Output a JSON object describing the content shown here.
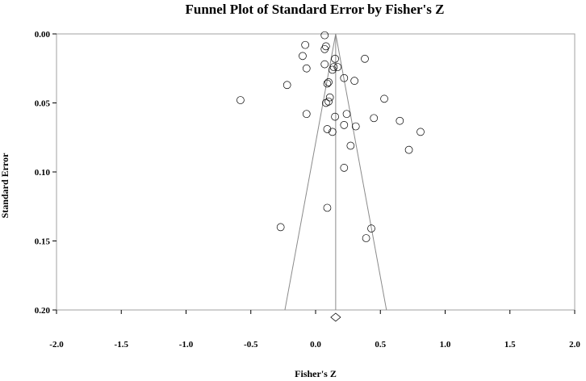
{
  "chart_data": {
    "type": "scatter",
    "title": "Funnel Plot of Standard Error by Fisher's Z",
    "xlabel": "Fisher's Z",
    "ylabel": "Standard Error",
    "xlim": [
      -2.0,
      2.0
    ],
    "ylim": [
      0.0,
      0.2
    ],
    "y_inverted": true,
    "x_ticks": [
      "-2.0",
      "-1.5",
      "-1.0",
      "-0.5",
      "0.0",
      "0.5",
      "1.0",
      "1.5",
      "2.0"
    ],
    "y_ticks": [
      "0.00",
      "0.05",
      "0.10",
      "0.15",
      "0.20"
    ],
    "pooled_estimate": 0.155,
    "funnel_base_se": 0.2,
    "points": [
      {
        "x": 0.07,
        "y": 0.001
      },
      {
        "x": -0.08,
        "y": 0.008
      },
      {
        "x": 0.08,
        "y": 0.009
      },
      {
        "x": 0.07,
        "y": 0.011
      },
      {
        "x": -0.1,
        "y": 0.016
      },
      {
        "x": 0.15,
        "y": 0.018
      },
      {
        "x": 0.38,
        "y": 0.018
      },
      {
        "x": 0.07,
        "y": 0.022
      },
      {
        "x": -0.07,
        "y": 0.025
      },
      {
        "x": 0.14,
        "y": 0.024
      },
      {
        "x": 0.17,
        "y": 0.024
      },
      {
        "x": 0.13,
        "y": 0.026
      },
      {
        "x": 0.22,
        "y": 0.032
      },
      {
        "x": 0.3,
        "y": 0.034
      },
      {
        "x": 0.1,
        "y": 0.035
      },
      {
        "x": 0.09,
        "y": 0.036
      },
      {
        "x": -0.22,
        "y": 0.037
      },
      {
        "x": 0.11,
        "y": 0.046
      },
      {
        "x": 0.53,
        "y": 0.047
      },
      {
        "x": -0.58,
        "y": 0.048
      },
      {
        "x": 0.1,
        "y": 0.049
      },
      {
        "x": 0.08,
        "y": 0.05
      },
      {
        "x": -0.07,
        "y": 0.058
      },
      {
        "x": 0.24,
        "y": 0.058
      },
      {
        "x": 0.15,
        "y": 0.06
      },
      {
        "x": 0.45,
        "y": 0.061
      },
      {
        "x": 0.65,
        "y": 0.063
      },
      {
        "x": 0.22,
        "y": 0.066
      },
      {
        "x": 0.31,
        "y": 0.067
      },
      {
        "x": 0.09,
        "y": 0.069
      },
      {
        "x": 0.13,
        "y": 0.071
      },
      {
        "x": 0.81,
        "y": 0.071
      },
      {
        "x": 0.27,
        "y": 0.081
      },
      {
        "x": 0.72,
        "y": 0.084
      },
      {
        "x": 0.22,
        "y": 0.097
      },
      {
        "x": 0.09,
        "y": 0.126
      },
      {
        "x": -0.27,
        "y": 0.14
      },
      {
        "x": 0.43,
        "y": 0.141
      },
      {
        "x": 0.39,
        "y": 0.148
      }
    ]
  }
}
